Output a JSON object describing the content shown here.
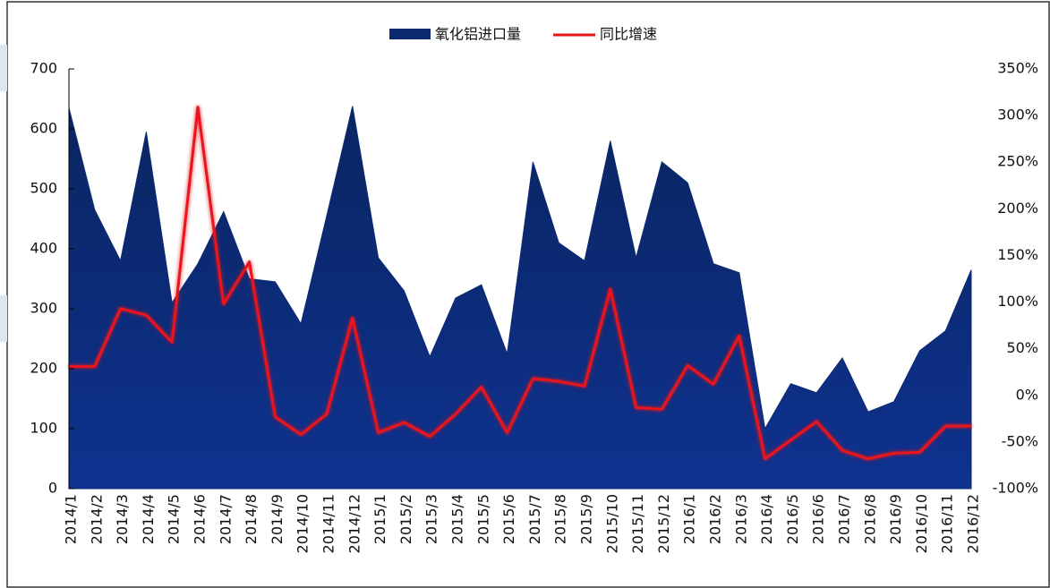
{
  "chart_data": {
    "type": "area-line",
    "categories": [
      "2014/1",
      "2014/2",
      "2014/3",
      "2014/4",
      "2014/5",
      "2014/6",
      "2014/7",
      "2014/8",
      "2014/9",
      "2014/10",
      "2014/11",
      "2014/12",
      "2015/1",
      "2015/2",
      "2015/3",
      "2015/4",
      "2015/5",
      "2015/6",
      "2015/7",
      "2015/8",
      "2015/9",
      "2015/10",
      "2015/11",
      "2015/12",
      "2016/1",
      "2016/2",
      "2016/3",
      "2016/4",
      "2016/5",
      "2016/6",
      "2016/7",
      "2016/8",
      "2016/9",
      "2016/10",
      "2016/11",
      "2016/12"
    ],
    "series": [
      {
        "name": "氧化铝进口量",
        "type": "area",
        "color": "#0b2a72",
        "values": [
          635,
          465,
          380,
          595,
          310,
          375,
          462,
          350,
          345,
          275,
          455,
          638,
          385,
          330,
          220,
          318,
          340,
          225,
          545,
          410,
          380,
          580,
          385,
          545,
          510,
          375,
          360,
          100,
          175,
          160,
          218,
          128,
          145,
          230,
          263,
          365
        ]
      },
      {
        "name": "同比增速",
        "type": "line",
        "axis": "y2",
        "color": "#e8141b",
        "values": [
          31,
          31,
          93,
          86,
          57,
          309,
          98,
          143,
          -23,
          -42,
          -20,
          83,
          -40,
          -29,
          -44,
          -20,
          9,
          -40,
          18,
          15,
          10,
          114,
          -13,
          -15,
          32,
          12,
          64,
          -68,
          -48,
          -28,
          -59,
          -68,
          -62,
          -61,
          -33,
          -33
        ]
      }
    ],
    "ylim": [
      0,
      700
    ],
    "yticks": [
      0,
      100,
      200,
      300,
      400,
      500,
      600,
      700
    ],
    "y2lim": [
      -100,
      350
    ],
    "y2ticks": [
      {
        "value": -100,
        "label": "-100%"
      },
      {
        "value": -50,
        "label": "-50%"
      },
      {
        "value": 0,
        "label": "0%"
      },
      {
        "value": 50,
        "label": "50%"
      },
      {
        "value": 100,
        "label": "100%"
      },
      {
        "value": 150,
        "label": "150%"
      },
      {
        "value": 200,
        "label": "200%"
      },
      {
        "value": 250,
        "label": "250%"
      },
      {
        "value": 300,
        "label": "300%"
      },
      {
        "value": 350,
        "label": "350%"
      }
    ],
    "legend": "top"
  }
}
